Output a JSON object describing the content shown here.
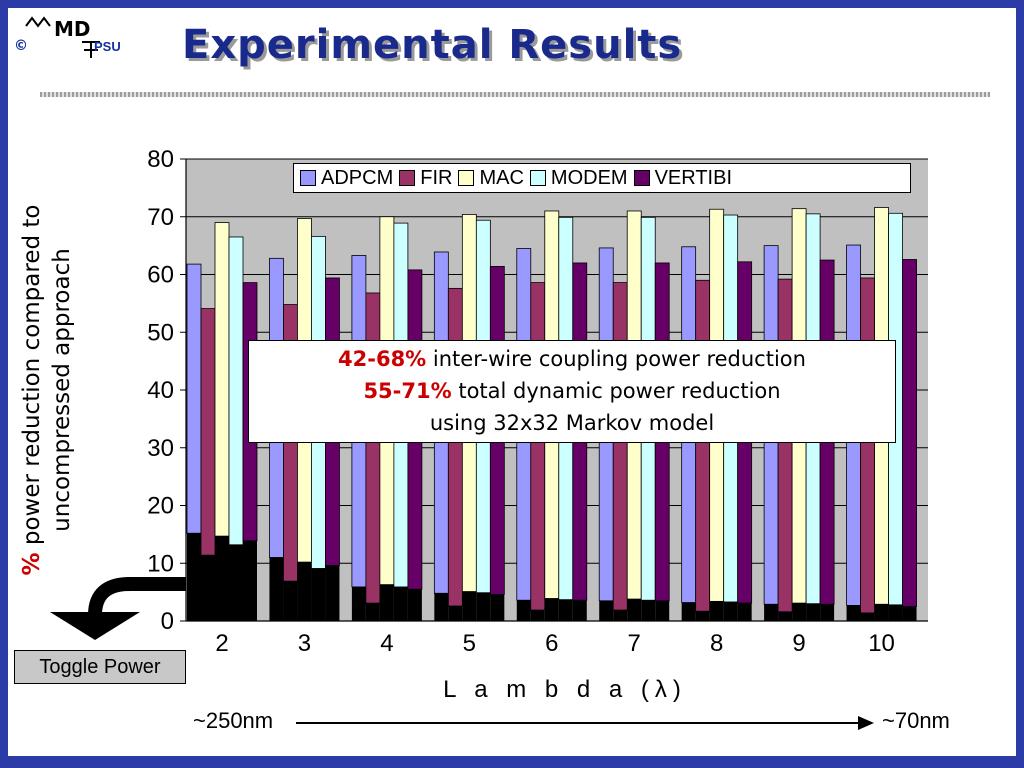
{
  "slide": {
    "title": "Experimental Results",
    "logo": {
      "copyright": "©",
      "org": "PSU",
      "mark": "MD"
    },
    "annotation": {
      "line1_highlight": "42-68%",
      "line1_text": " inter-wire coupling power reduction",
      "line2_highlight": "55-71%",
      "line2_text": " total dynamic power reduction",
      "line3_text": "using 32x32 Markov model"
    },
    "toggle_button": "Toggle Power",
    "tech_left": "~250nm",
    "tech_right": "~70nm",
    "ylabel_pct": "%",
    "ylabel_line1": " power reduction compared to",
    "ylabel_line2": "uncompressed approach"
  },
  "colors": {
    "frame": "#2b3ca8",
    "title": "#1a2a8c",
    "highlight": "#cc0000",
    "plot_bg": "#c0c0c0"
  },
  "chart_data": {
    "type": "bar",
    "xlabel": "L a m b d a (λ)",
    "ylabel": "% power reduction compared to uncompressed approach",
    "ylim": [
      0,
      80
    ],
    "yticks": [
      0,
      10,
      20,
      30,
      40,
      50,
      60,
      70,
      80
    ],
    "categories": [
      "2",
      "3",
      "4",
      "5",
      "6",
      "7",
      "8",
      "9",
      "10"
    ],
    "legend_position": "top-right",
    "grid": true,
    "series": [
      {
        "name": "ADPCM",
        "color": "#9999ff",
        "values": [
          61.8,
          62.8,
          63.3,
          63.9,
          64.5,
          64.6,
          64.8,
          65.0,
          65.1
        ],
        "base": [
          15.2,
          11.0,
          5.9,
          4.8,
          3.6,
          3.5,
          3.2,
          2.9,
          2.7
        ]
      },
      {
        "name": "FIR",
        "color": "#993366",
        "values": [
          54.1,
          54.8,
          56.8,
          57.6,
          58.6,
          58.6,
          59.0,
          59.2,
          59.4
        ],
        "base": [
          11.4,
          6.9,
          3.1,
          2.6,
          1.9,
          1.9,
          1.7,
          1.6,
          1.4
        ]
      },
      {
        "name": "MAC",
        "color": "#ffffcc",
        "values": [
          69.0,
          69.7,
          70.0,
          70.4,
          71.0,
          71.0,
          71.3,
          71.4,
          71.6
        ],
        "base": [
          14.7,
          10.2,
          6.3,
          5.1,
          3.9,
          3.8,
          3.4,
          3.1,
          2.9
        ]
      },
      {
        "name": "MODEM",
        "color": "#ccffff",
        "values": [
          66.5,
          66.6,
          68.9,
          69.4,
          69.9,
          69.9,
          70.3,
          70.5,
          70.6
        ],
        "base": [
          13.2,
          9.1,
          5.9,
          4.9,
          3.7,
          3.6,
          3.3,
          3.0,
          2.8
        ]
      },
      {
        "name": "VERTIBI",
        "color": "#660066",
        "values": [
          58.6,
          59.4,
          60.8,
          61.4,
          62.0,
          62.0,
          62.2,
          62.5,
          62.6
        ],
        "base": [
          13.9,
          9.6,
          5.5,
          4.6,
          3.6,
          3.5,
          3.1,
          2.9,
          2.5
        ]
      }
    ]
  }
}
